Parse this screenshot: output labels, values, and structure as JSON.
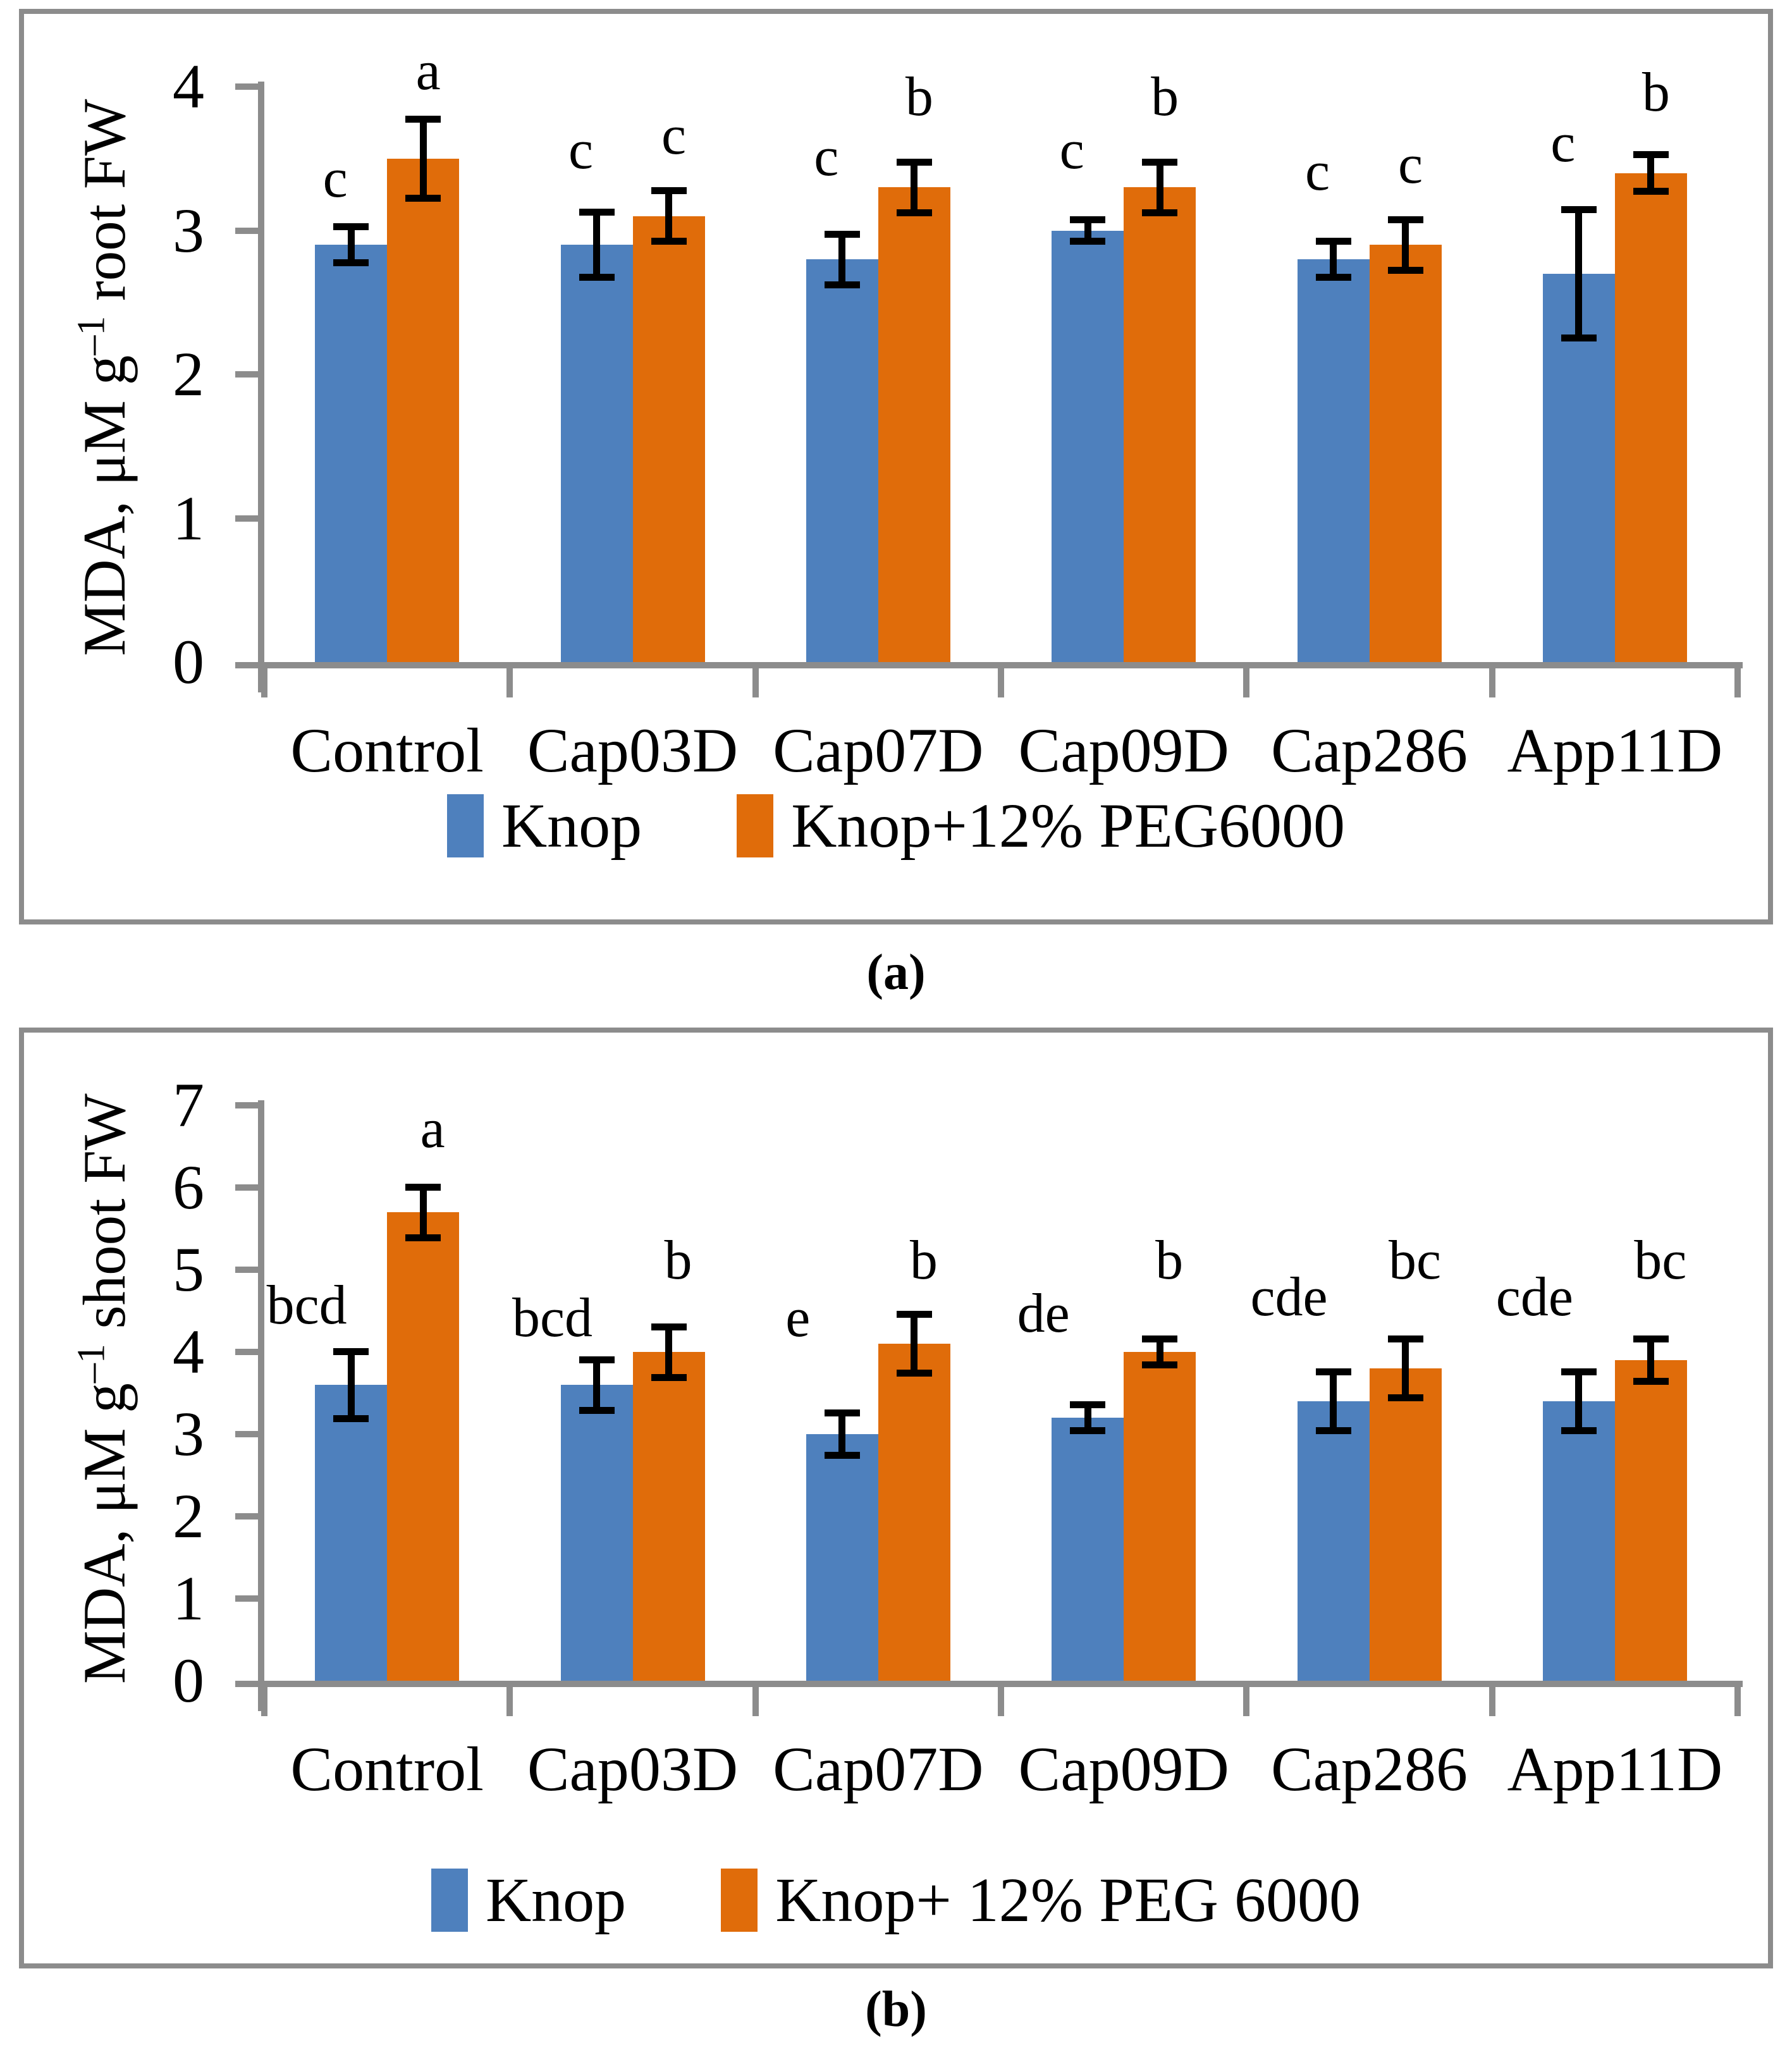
{
  "figure": {
    "panel_labels": [
      "(a)",
      "(b)"
    ]
  },
  "colors": {
    "knop_blue": "#4e80bd",
    "peg_orange": "#e06c0a",
    "axis_gray": "#8c8c8c",
    "frame_gray": "#8c8c8c",
    "error_black": "#000000"
  },
  "chart_data": [
    {
      "type": "bar",
      "title": "",
      "ylabel_pre": "MDA, μM g",
      "ylabel_sup": "–1",
      "ylabel_post": " root FW",
      "xlabel": "",
      "ylim": [
        0,
        4
      ],
      "yticks": [
        0,
        1,
        2,
        3,
        4
      ],
      "grid": false,
      "legend_position": "bottom",
      "categories": [
        "Control",
        "Cap03D",
        "Cap07D",
        "Cap09D",
        "Cap286",
        "App11D"
      ],
      "series": [
        {
          "name": "Knop",
          "color_key": "knop_blue",
          "values": [
            2.9,
            2.9,
            2.8,
            3.0,
            2.8,
            2.7
          ],
          "errors": [
            0.15,
            0.25,
            0.2,
            0.1,
            0.15,
            0.47
          ],
          "letters": [
            "c",
            "c",
            "c",
            "c",
            "c",
            "c"
          ],
          "letter_y": [
            3.15,
            3.35,
            3.3,
            3.35,
            3.2,
            3.4
          ]
        },
        {
          "name": "Knop+12% PEG6000",
          "color_key": "peg_orange",
          "values": [
            3.5,
            3.1,
            3.3,
            3.3,
            2.9,
            3.4
          ],
          "errors": [
            0.3,
            0.2,
            0.2,
            0.2,
            0.2,
            0.15
          ],
          "letters": [
            "a",
            "c",
            "b",
            "b",
            "c",
            "b"
          ],
          "letter_y": [
            3.9,
            3.45,
            3.72,
            3.72,
            3.25,
            3.75
          ]
        }
      ]
    },
    {
      "type": "bar",
      "title": "",
      "ylabel_pre": "MDA, μM g",
      "ylabel_sup": "–1",
      "ylabel_post": " shoot FW",
      "xlabel": "",
      "ylim": [
        0,
        7
      ],
      "yticks": [
        0,
        1,
        2,
        3,
        4,
        5,
        6,
        7
      ],
      "grid": false,
      "legend_position": "bottom",
      "categories": [
        "Control",
        "Cap03D",
        "Cap07D",
        "Cap09D",
        "Cap286",
        "App11D"
      ],
      "series": [
        {
          "name": "Knop",
          "color_key": "knop_blue",
          "values": [
            3.6,
            3.6,
            3.0,
            3.2,
            3.4,
            3.4
          ],
          "errors": [
            0.45,
            0.35,
            0.3,
            0.2,
            0.4,
            0.4
          ],
          "letters": [
            "bcd",
            "bcd",
            "e",
            "de",
            "cde",
            "cde"
          ],
          "letter_y": [
            4.2,
            4.05,
            4.05,
            4.1,
            4.3,
            4.3
          ]
        },
        {
          "name": "Knop+ 12% PEG 6000",
          "color_key": "peg_orange",
          "values": [
            5.7,
            4.0,
            4.1,
            4.0,
            3.8,
            3.9
          ],
          "errors": [
            0.35,
            0.35,
            0.4,
            0.2,
            0.4,
            0.3
          ],
          "letters": [
            "a",
            "b",
            "b",
            "b",
            "bc",
            "bc"
          ],
          "letter_y": [
            6.35,
            4.75,
            4.75,
            4.75,
            4.75,
            4.75
          ]
        }
      ]
    }
  ]
}
